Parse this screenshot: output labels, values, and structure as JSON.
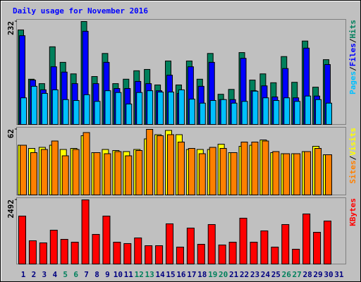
{
  "chart_data": [
    {
      "type": "bar",
      "title": "Daily usage for November 2016",
      "ylim": [
        0,
        232
      ],
      "yticks": [
        232
      ],
      "legend_separator": "/",
      "series": [
        {
          "name": "Hits",
          "color": "#00805c",
          "values": [
            213,
            102,
            92,
            175,
            140,
            114,
            232,
            108,
            160,
            92,
            102,
            121,
            124,
            89,
            143,
            89,
            143,
            102,
            160,
            68,
            79,
            162,
            100,
            114,
            94,
            153,
            95,
            188,
            84,
            146,
            null
          ]
        },
        {
          "name": "Files",
          "color": "#0000ff",
          "values": [
            200,
            100,
            78,
            130,
            118,
            92,
            210,
            92,
            140,
            81,
            81,
            97,
            92,
            76,
            111,
            70,
            130,
            86,
            140,
            56,
            56,
            149,
            76,
            87,
            62,
            126,
            60,
            172,
            64,
            135,
            null
          ]
        },
        {
          "name": "Pages",
          "color": "#00c0ff",
          "values": [
            60,
            86,
            70,
            78,
            56,
            54,
            67,
            52,
            76,
            72,
            46,
            72,
            76,
            73,
            73,
            78,
            57,
            48,
            54,
            56,
            48,
            52,
            75,
            60,
            54,
            60,
            52,
            64,
            56,
            48,
            null
          ]
        }
      ]
    },
    {
      "type": "bar",
      "ylim": [
        0,
        62
      ],
      "yticks": [
        62
      ],
      "legend_separator": "/",
      "series": [
        {
          "name": "Visits",
          "color": "#ffff00",
          "values": [
            47,
            44,
            45,
            47,
            43,
            44,
            56,
            40,
            43,
            42,
            41,
            43,
            53,
            57,
            61,
            57,
            43,
            43,
            43,
            48,
            40,
            46,
            47,
            52,
            40,
            39,
            39,
            41,
            46,
            38,
            null
          ]
        },
        {
          "name": "Sites",
          "color": "#ff8000",
          "values": [
            47,
            40,
            43,
            51,
            37,
            43,
            59,
            40,
            39,
            41,
            37,
            42,
            62,
            56,
            57,
            50,
            44,
            39,
            45,
            44,
            40,
            50,
            50,
            51,
            41,
            39,
            39,
            41,
            44,
            38,
            null
          ]
        }
      ]
    },
    {
      "type": "bar",
      "ylim": [
        0,
        2492
      ],
      "yticks": [
        2492
      ],
      "categories": [
        "1",
        "2",
        "3",
        "4",
        "5",
        "6",
        "7",
        "8",
        "9",
        "10",
        "11",
        "12",
        "13",
        "14",
        "15",
        "16",
        "17",
        "18",
        "19",
        "20",
        "21",
        "22",
        "23",
        "24",
        "25",
        "26",
        "27",
        "28",
        "29",
        "30",
        "31"
      ],
      "category_colors": [
        "#000080",
        "#000080",
        "#000080",
        "#000080",
        "#00805c",
        "#00805c",
        "#000080",
        "#000080",
        "#000080",
        "#000080",
        "#000080",
        "#00805c",
        "#00805c",
        "#000080",
        "#000080",
        "#000080",
        "#000080",
        "#000080",
        "#00805c",
        "#00805c",
        "#000080",
        "#000080",
        "#000080",
        "#000080",
        "#000080",
        "#00805c",
        "#00805c",
        "#000080",
        "#000080",
        "#000080",
        "#000080"
      ],
      "series": [
        {
          "name": "KBytes",
          "color": "#ff0000",
          "values": [
            1863,
            904,
            822,
            1315,
            959,
            849,
            2492,
            1151,
            1863,
            849,
            795,
            1014,
            712,
            712,
            1562,
            658,
            1397,
            767,
            1534,
            740,
            849,
            1781,
            849,
            1288,
            658,
            1534,
            575,
            1945,
            1233,
            1671,
            null
          ]
        }
      ]
    }
  ]
}
